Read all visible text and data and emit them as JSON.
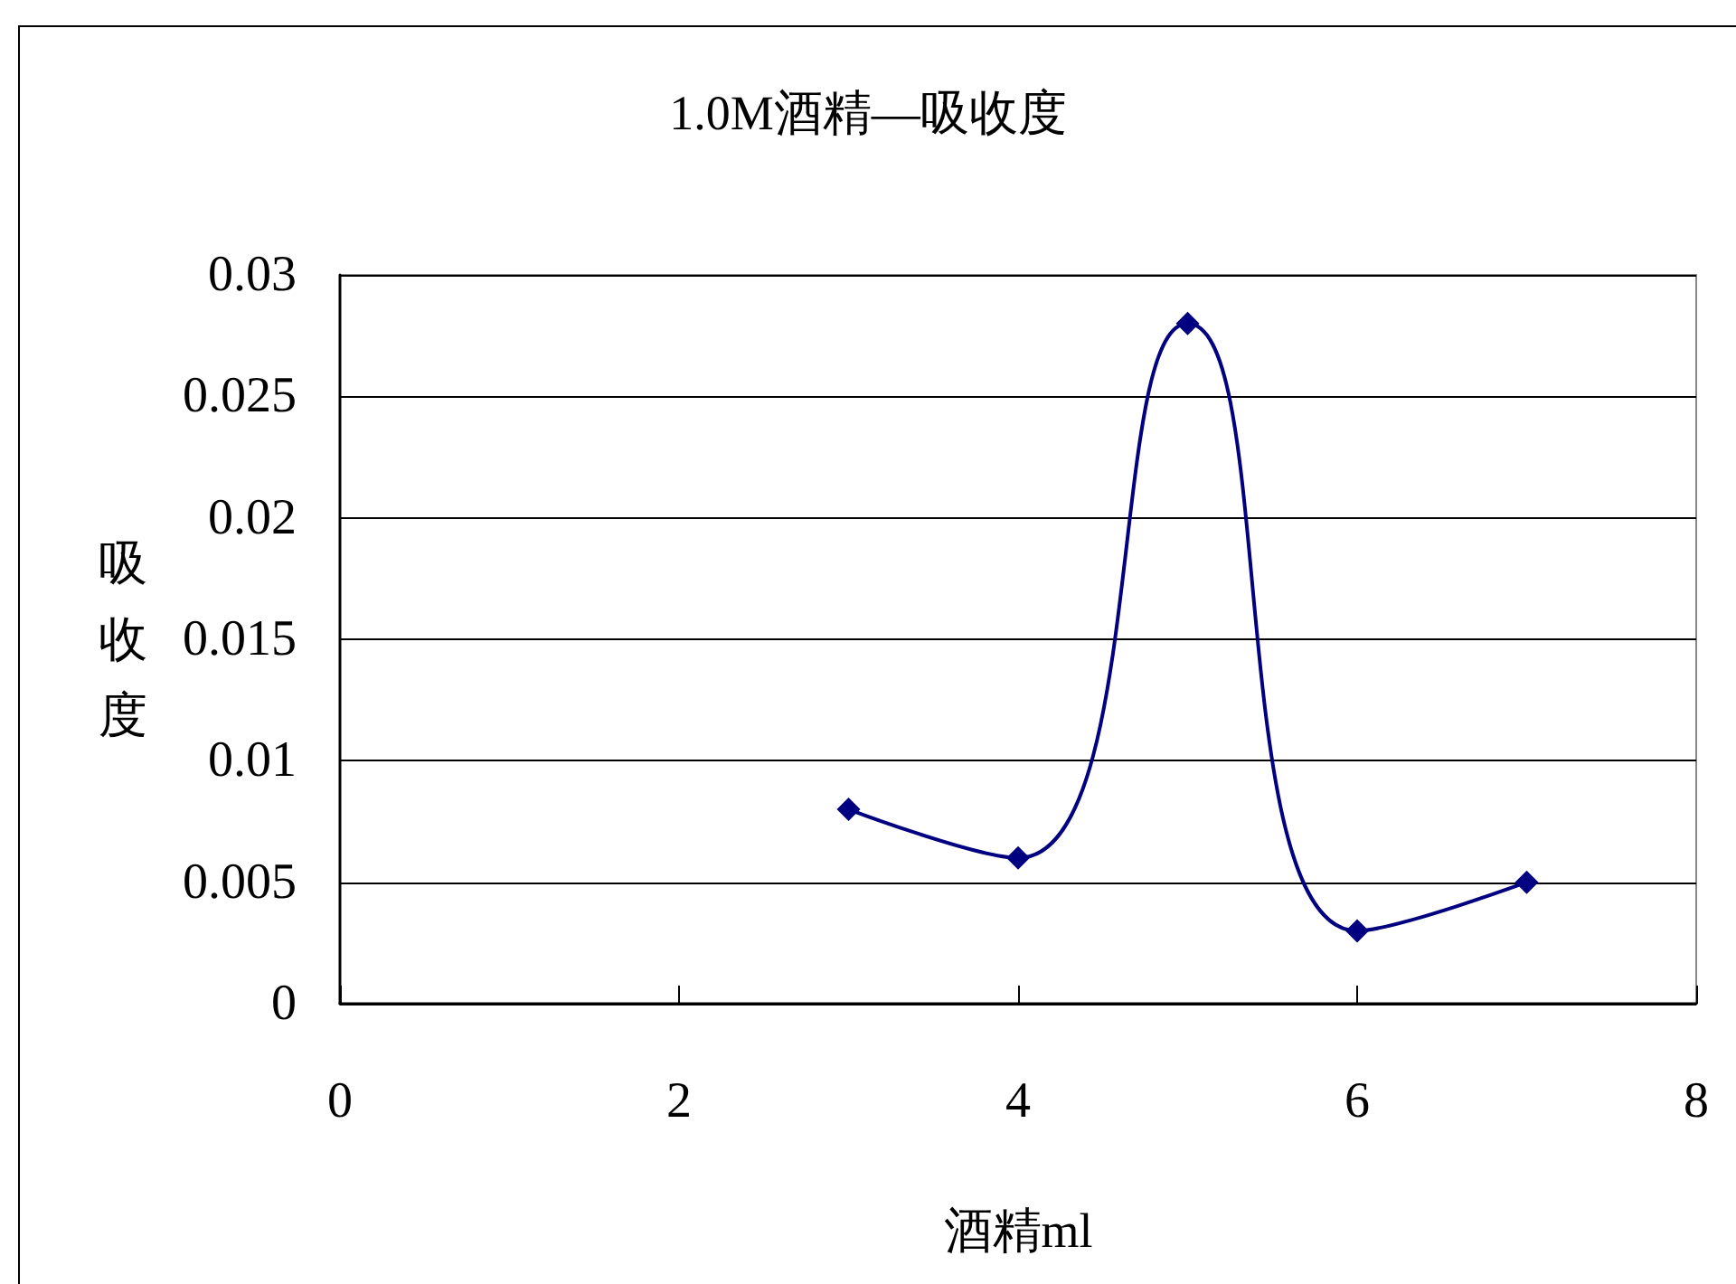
{
  "chart_data": {
    "type": "line",
    "title": "1.0M酒精—吸收度",
    "xlabel": "酒精ml",
    "ylabel": "吸收度",
    "x": [
      3,
      4,
      5,
      6,
      7
    ],
    "series": [
      {
        "color": "#000080",
        "values": [
          0.008,
          0.006,
          0.028,
          0.003,
          0.005
        ]
      }
    ],
    "xlim": [
      0,
      8
    ],
    "xticks": [
      0,
      2,
      4,
      6,
      8
    ],
    "ylim": [
      0,
      0.03
    ],
    "yticks": [
      0,
      0.005,
      0.01,
      0.015,
      0.02,
      0.025,
      0.03
    ],
    "grid": "y",
    "marker": "diamond"
  }
}
